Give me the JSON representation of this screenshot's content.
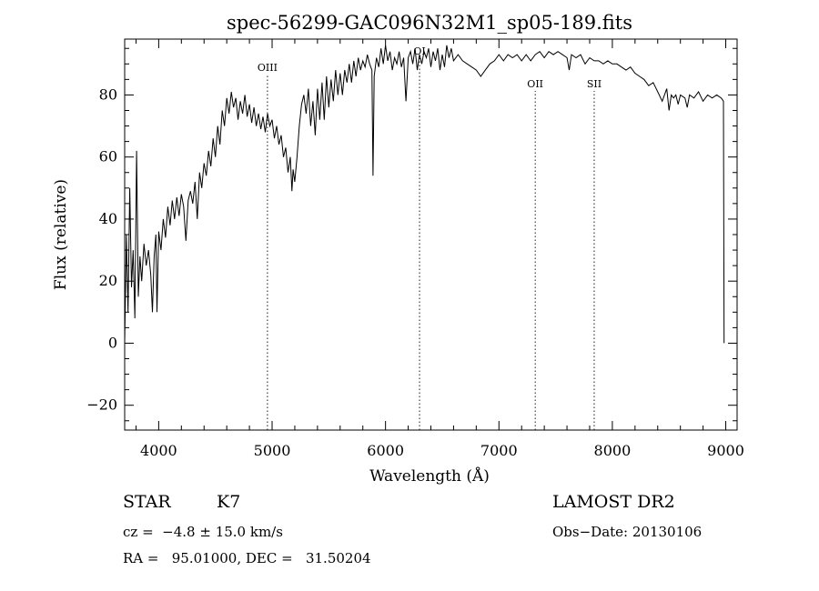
{
  "chart_data": {
    "type": "line",
    "title": "spec-56299-GAC096N32M1_sp05-189.fits",
    "xlabel": "Wavelength (Å)",
    "ylabel": "Flux (relative)",
    "xlim": [
      3700,
      9100
    ],
    "ylim": [
      -28,
      98
    ],
    "x_ticks": [
      4000,
      5000,
      6000,
      7000,
      8000,
      9000
    ],
    "y_ticks": [
      -20,
      0,
      20,
      40,
      60,
      80
    ],
    "grid": false,
    "line_color": "#000000",
    "series": [
      {
        "points": [
          [
            3700,
            0
          ],
          [
            3715,
            35
          ],
          [
            3730,
            10
          ],
          [
            3745,
            50
          ],
          [
            3760,
            18
          ],
          [
            3775,
            30
          ],
          [
            3790,
            8
          ],
          [
            3805,
            62
          ],
          [
            3820,
            15
          ],
          [
            3835,
            28
          ],
          [
            3850,
            20
          ],
          [
            3870,
            32
          ],
          [
            3890,
            25
          ],
          [
            3910,
            30
          ],
          [
            3930,
            22
          ],
          [
            3945,
            10
          ],
          [
            3960,
            28
          ],
          [
            3975,
            35
          ],
          [
            3985,
            10
          ],
          [
            4000,
            36
          ],
          [
            4020,
            30
          ],
          [
            4040,
            40
          ],
          [
            4060,
            34
          ],
          [
            4080,
            44
          ],
          [
            4100,
            38
          ],
          [
            4120,
            46
          ],
          [
            4140,
            40
          ],
          [
            4160,
            47
          ],
          [
            4180,
            41
          ],
          [
            4200,
            48
          ],
          [
            4220,
            44
          ],
          [
            4240,
            33
          ],
          [
            4260,
            46
          ],
          [
            4280,
            49
          ],
          [
            4300,
            45
          ],
          [
            4320,
            52
          ],
          [
            4340,
            40
          ],
          [
            4360,
            55
          ],
          [
            4380,
            50
          ],
          [
            4400,
            58
          ],
          [
            4420,
            54
          ],
          [
            4440,
            62
          ],
          [
            4460,
            57
          ],
          [
            4480,
            66
          ],
          [
            4500,
            60
          ],
          [
            4520,
            70
          ],
          [
            4540,
            64
          ],
          [
            4560,
            75
          ],
          [
            4580,
            70
          ],
          [
            4600,
            79
          ],
          [
            4620,
            74
          ],
          [
            4640,
            81
          ],
          [
            4660,
            76
          ],
          [
            4680,
            79
          ],
          [
            4700,
            72
          ],
          [
            4720,
            78
          ],
          [
            4740,
            74
          ],
          [
            4760,
            80
          ],
          [
            4780,
            73
          ],
          [
            4800,
            77
          ],
          [
            4820,
            71
          ],
          [
            4840,
            76
          ],
          [
            4860,
            70
          ],
          [
            4880,
            74
          ],
          [
            4900,
            69
          ],
          [
            4920,
            73
          ],
          [
            4940,
            68
          ],
          [
            4960,
            74
          ],
          [
            4980,
            70
          ],
          [
            5000,
            72
          ],
          [
            5020,
            66
          ],
          [
            5040,
            70
          ],
          [
            5060,
            64
          ],
          [
            5080,
            67
          ],
          [
            5100,
            60
          ],
          [
            5120,
            63
          ],
          [
            5140,
            55
          ],
          [
            5160,
            60
          ],
          [
            5175,
            49
          ],
          [
            5185,
            56
          ],
          [
            5200,
            52
          ],
          [
            5220,
            60
          ],
          [
            5240,
            70
          ],
          [
            5260,
            77
          ],
          [
            5280,
            80
          ],
          [
            5300,
            74
          ],
          [
            5320,
            82
          ],
          [
            5340,
            70
          ],
          [
            5360,
            78
          ],
          [
            5380,
            67
          ],
          [
            5400,
            82
          ],
          [
            5420,
            72
          ],
          [
            5440,
            84
          ],
          [
            5460,
            72
          ],
          [
            5480,
            86
          ],
          [
            5500,
            76
          ],
          [
            5520,
            85
          ],
          [
            5540,
            78
          ],
          [
            5560,
            88
          ],
          [
            5580,
            80
          ],
          [
            5600,
            87
          ],
          [
            5620,
            80
          ],
          [
            5640,
            88
          ],
          [
            5660,
            84
          ],
          [
            5680,
            90
          ],
          [
            5700,
            84
          ],
          [
            5720,
            91
          ],
          [
            5740,
            86
          ],
          [
            5760,
            92
          ],
          [
            5780,
            88
          ],
          [
            5800,
            91
          ],
          [
            5820,
            89
          ],
          [
            5840,
            93
          ],
          [
            5860,
            90
          ],
          [
            5880,
            88
          ],
          [
            5890,
            54
          ],
          [
            5900,
            86
          ],
          [
            5920,
            92
          ],
          [
            5940,
            89
          ],
          [
            5960,
            95
          ],
          [
            5980,
            90
          ],
          [
            6000,
            96
          ],
          [
            6020,
            91
          ],
          [
            6040,
            94
          ],
          [
            6060,
            88
          ],
          [
            6080,
            92
          ],
          [
            6100,
            90
          ],
          [
            6120,
            94
          ],
          [
            6140,
            89
          ],
          [
            6160,
            92
          ],
          [
            6180,
            78
          ],
          [
            6200,
            92
          ],
          [
            6220,
            94
          ],
          [
            6240,
            90
          ],
          [
            6260,
            95
          ],
          [
            6280,
            88
          ],
          [
            6300,
            93
          ],
          [
            6320,
            90
          ],
          [
            6340,
            94
          ],
          [
            6360,
            92
          ],
          [
            6380,
            95
          ],
          [
            6400,
            89
          ],
          [
            6420,
            94
          ],
          [
            6440,
            91
          ],
          [
            6460,
            95
          ],
          [
            6480,
            88
          ],
          [
            6500,
            93
          ],
          [
            6520,
            89
          ],
          [
            6540,
            96
          ],
          [
            6560,
            92
          ],
          [
            6580,
            95
          ],
          [
            6600,
            91
          ],
          [
            6640,
            93
          ],
          [
            6680,
            91
          ],
          [
            6720,
            90
          ],
          [
            6760,
            89
          ],
          [
            6800,
            88
          ],
          [
            6840,
            86
          ],
          [
            6880,
            88
          ],
          [
            6920,
            90
          ],
          [
            6960,
            91
          ],
          [
            7000,
            93
          ],
          [
            7040,
            91
          ],
          [
            7080,
            93
          ],
          [
            7120,
            92
          ],
          [
            7160,
            93
          ],
          [
            7200,
            91
          ],
          [
            7240,
            93
          ],
          [
            7280,
            91
          ],
          [
            7320,
            93
          ],
          [
            7360,
            94
          ],
          [
            7400,
            92
          ],
          [
            7440,
            94
          ],
          [
            7480,
            93
          ],
          [
            7520,
            94
          ],
          [
            7560,
            93
          ],
          [
            7600,
            92
          ],
          [
            7620,
            88
          ],
          [
            7640,
            93
          ],
          [
            7680,
            92
          ],
          [
            7720,
            93
          ],
          [
            7760,
            90
          ],
          [
            7800,
            92
          ],
          [
            7840,
            91
          ],
          [
            7880,
            91
          ],
          [
            7920,
            90
          ],
          [
            7960,
            91
          ],
          [
            8000,
            90
          ],
          [
            8040,
            90
          ],
          [
            8080,
            89
          ],
          [
            8120,
            88
          ],
          [
            8160,
            89
          ],
          [
            8200,
            87
          ],
          [
            8240,
            86
          ],
          [
            8280,
            85
          ],
          [
            8320,
            83
          ],
          [
            8360,
            84
          ],
          [
            8400,
            81
          ],
          [
            8440,
            78
          ],
          [
            8480,
            82
          ],
          [
            8500,
            75
          ],
          [
            8520,
            80
          ],
          [
            8540,
            79
          ],
          [
            8560,
            80
          ],
          [
            8580,
            77
          ],
          [
            8600,
            80
          ],
          [
            8640,
            79
          ],
          [
            8660,
            76
          ],
          [
            8680,
            80
          ],
          [
            8720,
            79
          ],
          [
            8760,
            81
          ],
          [
            8800,
            78
          ],
          [
            8840,
            80
          ],
          [
            8880,
            79
          ],
          [
            8920,
            80
          ],
          [
            8960,
            79
          ],
          [
            8980,
            78
          ],
          [
            8985,
            0
          ]
        ]
      }
    ],
    "annotations": [
      {
        "label": "OIII",
        "x": 4959
      },
      {
        "label": "OI",
        "x": 6300
      },
      {
        "label": "OII",
        "x": 7320
      },
      {
        "label": "SII",
        "x": 7840
      }
    ]
  },
  "info": {
    "object_type": "STAR",
    "subclass": "K7",
    "survey": "LAMOST DR2",
    "redshift_line": "cz =  −4.8 ± 15.0 km/s",
    "obs_date": "Obs−Date: 20130106",
    "coords": "RA =   95.01000, DEC =   31.50204"
  }
}
